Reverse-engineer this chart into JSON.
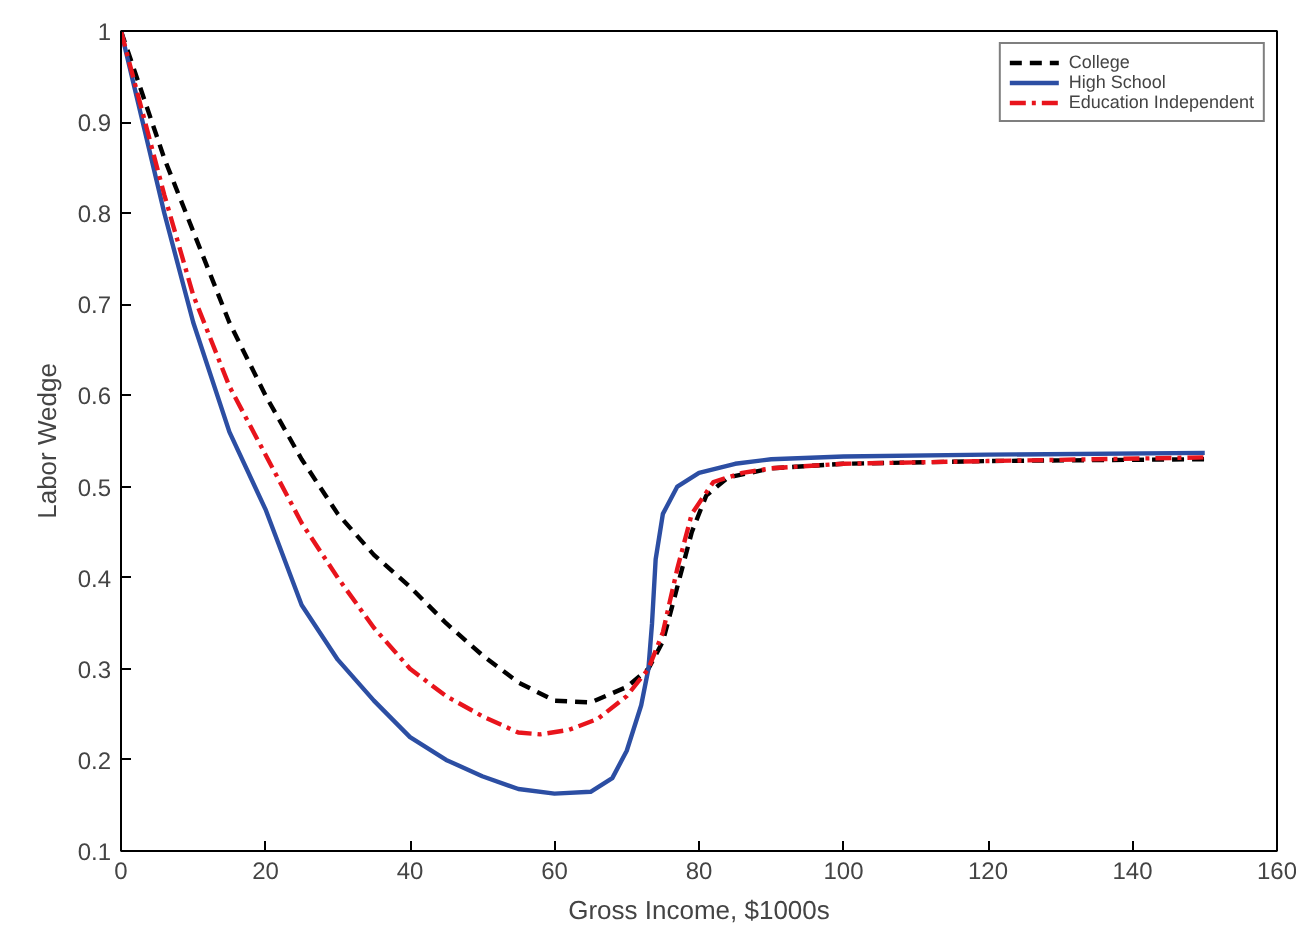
{
  "chart_data": {
    "type": "line",
    "xlabel": "Gross Income, $1000s",
    "ylabel": "Labor Wedge",
    "xlim": [
      0,
      160
    ],
    "xticks": [
      0,
      20,
      40,
      60,
      80,
      100,
      120,
      140,
      160
    ],
    "ylim": [
      0.1,
      1
    ],
    "yticks": [
      0.1,
      0.2,
      0.3,
      0.4,
      0.5,
      0.6,
      0.7,
      0.8,
      0.9,
      1
    ],
    "grid": false,
    "legend": "top right",
    "marker": "none",
    "series": [
      {
        "name": "College",
        "color": "#000000",
        "line_style": "dashed",
        "x": [
          0,
          3,
          6,
          10,
          15,
          20,
          25,
          30,
          35,
          40,
          45,
          50,
          55,
          60,
          65,
          70,
          73,
          75,
          77,
          79,
          81,
          84,
          90,
          100,
          120,
          150
        ],
        "values": [
          1,
          0.93,
          0.86,
          0.78,
          0.68,
          0.6,
          0.53,
          0.47,
          0.425,
          0.39,
          0.35,
          0.315,
          0.285,
          0.265,
          0.263,
          0.28,
          0.3,
          0.33,
          0.39,
          0.45,
          0.49,
          0.51,
          0.52,
          0.525,
          0.528,
          0.53
        ]
      },
      {
        "name": "High School",
        "color": "#2c4ea3",
        "line_style": "solid",
        "x": [
          0,
          3,
          6,
          10,
          15,
          20,
          25,
          30,
          35,
          40,
          45,
          50,
          55,
          60,
          65,
          68,
          70,
          72,
          73,
          73.5,
          74,
          75,
          77,
          80,
          85,
          90,
          100,
          120,
          150
        ],
        "values": [
          1,
          0.9,
          0.8,
          0.68,
          0.56,
          0.475,
          0.37,
          0.31,
          0.265,
          0.225,
          0.2,
          0.182,
          0.168,
          0.163,
          0.165,
          0.18,
          0.21,
          0.26,
          0.3,
          0.35,
          0.42,
          0.47,
          0.5,
          0.515,
          0.525,
          0.53,
          0.533,
          0.535,
          0.537
        ]
      },
      {
        "name": "Education Independent",
        "color": "#e8141c",
        "line_style": "dashdot",
        "x": [
          0,
          3,
          6,
          10,
          15,
          20,
          25,
          30,
          35,
          40,
          45,
          50,
          55,
          58,
          62,
          66,
          70,
          73,
          75,
          77,
          79,
          82,
          86,
          90,
          100,
          120,
          150
        ],
        "values": [
          1,
          0.91,
          0.82,
          0.71,
          0.61,
          0.535,
          0.46,
          0.4,
          0.345,
          0.3,
          0.27,
          0.248,
          0.23,
          0.228,
          0.233,
          0.245,
          0.27,
          0.3,
          0.34,
          0.41,
          0.47,
          0.505,
          0.515,
          0.52,
          0.525,
          0.528,
          0.532
        ]
      }
    ]
  }
}
